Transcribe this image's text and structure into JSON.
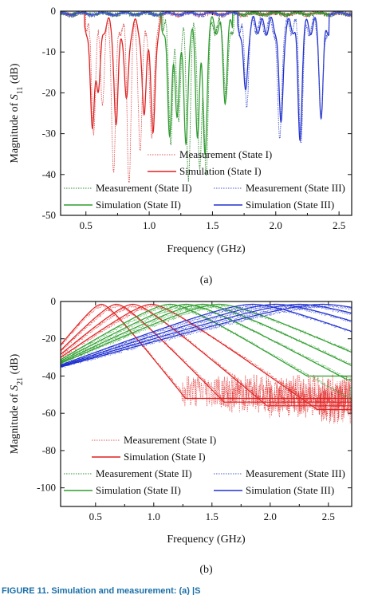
{
  "caption": "FIGURE 11. Simulation and measurement: (a) |S",
  "chart_data": [
    {
      "type": "line",
      "panel_label": "(a)",
      "xlabel": "Frequency (GHz)",
      "ylabel_main": "Magnitude of ",
      "ylabel_symbol": "S",
      "ylabel_sub": "11",
      "ylabel_unit": " (dB)",
      "xlim": [
        0.3,
        2.6
      ],
      "ylim": [
        -50,
        0
      ],
      "xticks": [
        0.5,
        1.0,
        1.5,
        2.0,
        2.5
      ],
      "xtick_labels": [
        "0.5",
        "1.0",
        "1.5",
        "2.0",
        "2.5"
      ],
      "yticks": [
        0,
        -10,
        -20,
        -30,
        -40,
        -50
      ],
      "ytick_labels": [
        "0",
        "-10",
        "-20",
        "-30",
        "-40",
        "-50"
      ],
      "grid": false,
      "legend": [
        {
          "label": "Measurement (State I)",
          "color": "#e05a5a",
          "dash": "dot"
        },
        {
          "label": "Simulation (State I)",
          "color": "#e02020",
          "dash": "solid"
        },
        {
          "label": "Measurement (State II)",
          "color": "#2e8b2e",
          "dash": "dot"
        },
        {
          "label": "Measurement (State III)",
          "color": "#4a5bd0",
          "dash": "dot"
        },
        {
          "label": "Simulation (State II)",
          "color": "#2e9e2e",
          "dash": "solid"
        },
        {
          "label": "Simulation (State III)",
          "color": "#2030d0",
          "dash": "solid"
        }
      ],
      "series": [
        {
          "color": "#e02020",
          "dash": "solid",
          "dips": [
            [
              0.55,
              -26
            ],
            [
              0.6,
              -17
            ],
            [
              0.74,
              -25
            ],
            [
              0.82,
              -20
            ],
            [
              0.96,
              -24
            ],
            [
              1.03,
              -28
            ]
          ]
        },
        {
          "color": "#e05a5a",
          "dash": "dot",
          "dips": [
            [
              0.56,
              -24
            ],
            [
              0.63,
              -18
            ],
            [
              0.72,
              -35
            ],
            [
              0.84,
              -37
            ],
            [
              0.93,
              -30
            ],
            [
              1.02,
              -29
            ]
          ]
        },
        {
          "color": "#2e9e2e",
          "dash": "solid",
          "dips": [
            [
              1.16,
              -28
            ],
            [
              1.22,
              -24
            ],
            [
              1.29,
              -31
            ],
            [
              1.38,
              -26
            ],
            [
              1.44,
              -32
            ],
            [
              1.6,
              -17
            ]
          ]
        },
        {
          "color": "#2e8b2e",
          "dash": "dot",
          "dips": [
            [
              1.17,
              -27
            ],
            [
              1.23,
              -22
            ],
            [
              1.31,
              -36
            ],
            [
              1.4,
              -35
            ],
            [
              1.45,
              -34
            ],
            [
              1.61,
              -18
            ]
          ]
        },
        {
          "color": "#2030d0",
          "dash": "solid",
          "dips": [
            [
              1.76,
              -17
            ],
            [
              2.04,
              -25
            ],
            [
              2.19,
              -28
            ],
            [
              2.36,
              -22
            ]
          ]
        },
        {
          "color": "#4a5bd0",
          "dash": "dot",
          "dips": [
            [
              1.77,
              -18
            ],
            [
              2.03,
              -29
            ],
            [
              2.2,
              -27
            ],
            [
              2.36,
              -23
            ]
          ]
        }
      ]
    },
    {
      "type": "line",
      "panel_label": "(b)",
      "xlabel": "Frequency (GHz)",
      "ylabel_main": "Magnitude of ",
      "ylabel_symbol": "S",
      "ylabel_sub": "21",
      "ylabel_unit": " (dB)",
      "xlim": [
        0.2,
        2.7
      ],
      "ylim": [
        -110,
        0
      ],
      "xticks": [
        0.5,
        1.0,
        1.5,
        2.0,
        2.5
      ],
      "xtick_labels": [
        "0.5",
        "1.0",
        "1.5",
        "2.0",
        "2.5"
      ],
      "yticks": [
        0,
        -20,
        -40,
        -60,
        -80,
        -100
      ],
      "ytick_labels": [
        "0",
        "-20",
        "-40",
        "-60",
        "-80",
        "-100"
      ],
      "grid": false,
      "legend": [
        {
          "label": "Measurement (State I)",
          "color": "#e05a5a",
          "dash": "dot"
        },
        {
          "label": "Simulation (State I)",
          "color": "#e02020",
          "dash": "solid"
        },
        {
          "label": "Measurement (State II)",
          "color": "#2e8b2e",
          "dash": "dot"
        },
        {
          "label": "Measurement (State III)",
          "color": "#4a5bd0",
          "dash": "dot"
        },
        {
          "label": "Simulation (State II)",
          "color": "#2e9e2e",
          "dash": "solid"
        },
        {
          "label": "Simulation (State III)",
          "color": "#2030d0",
          "dash": "solid"
        }
      ],
      "series": [
        {
          "color": "#e02020",
          "peaks": [
            0.55,
            0.68,
            0.82,
            0.98
          ],
          "floor": -52
        },
        {
          "color": "#2e9e2e",
          "peaks": [
            1.14,
            1.28,
            1.42,
            1.56
          ],
          "floor": -40
        },
        {
          "color": "#2030d0",
          "peaks": [
            1.85,
            2.05,
            2.25,
            2.45
          ],
          "floor": -22
        }
      ]
    }
  ]
}
